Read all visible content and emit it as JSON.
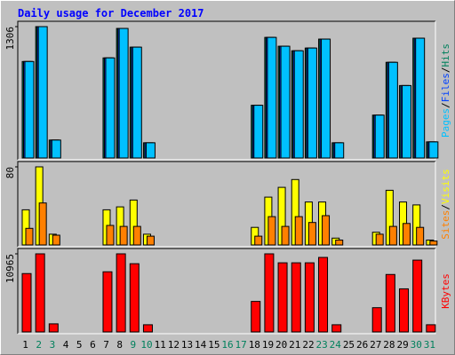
{
  "separator": "/",
  "chart_data": [
    {
      "type": "bar",
      "title": "Daily usage for December 2017",
      "ylim": [
        0,
        1306
      ],
      "yticks": [
        1306
      ],
      "series": [
        {
          "name": "Hits",
          "color": "#00805c",
          "values": [
            959,
            1306,
            178,
            0,
            0,
            0,
            995,
            1288,
            1102,
            151,
            0,
            0,
            0,
            0,
            0,
            0,
            0,
            524,
            1199,
            1111,
            1066,
            1093,
            1182,
            151,
            0,
            0,
            426,
            951,
            720,
            1191,
            160
          ]
        },
        {
          "name": "Files",
          "color": "#0040ff",
          "values": [
            959,
            1306,
            178,
            0,
            0,
            0,
            995,
            1288,
            1102,
            151,
            0,
            0,
            0,
            0,
            0,
            0,
            0,
            524,
            1199,
            1111,
            1066,
            1093,
            1182,
            151,
            0,
            0,
            426,
            951,
            720,
            1191,
            160
          ]
        },
        {
          "name": "Pages",
          "color": "#00c0ff",
          "values": [
            959,
            1306,
            178,
            0,
            0,
            0,
            995,
            1288,
            1102,
            151,
            0,
            0,
            0,
            0,
            0,
            0,
            0,
            524,
            1199,
            1111,
            1066,
            1093,
            1182,
            151,
            0,
            0,
            426,
            951,
            720,
            1191,
            160
          ]
        }
      ]
    },
    {
      "type": "bar",
      "ylim": [
        0,
        80
      ],
      "yticks": [
        80
      ],
      "series": [
        {
          "name": "Visits",
          "color": "#ffff00",
          "values": [
            36,
            80,
            11,
            0,
            0,
            0,
            36,
            39,
            46,
            11,
            0,
            0,
            0,
            0,
            0,
            0,
            0,
            18,
            49,
            59,
            67,
            44,
            44,
            7,
            0,
            0,
            13,
            56,
            44,
            41,
            5
          ]
        },
        {
          "name": "Sites",
          "color": "#ff8000",
          "values": [
            17,
            43,
            10,
            0,
            0,
            0,
            20,
            19,
            19,
            9,
            0,
            0,
            0,
            0,
            0,
            0,
            0,
            9,
            29,
            19,
            29,
            23,
            30,
            5,
            0,
            0,
            11,
            19,
            22,
            18,
            4
          ]
        }
      ]
    },
    {
      "type": "bar",
      "ylim": [
        0,
        10965
      ],
      "yticks": [
        10965
      ],
      "categories": [
        "1",
        "2",
        "3",
        "4",
        "5",
        "6",
        "7",
        "8",
        "9",
        "10",
        "11",
        "12",
        "13",
        "14",
        "15",
        "16",
        "17",
        "18",
        "19",
        "20",
        "21",
        "22",
        "23",
        "24",
        "25",
        "26",
        "27",
        "28",
        "29",
        "30",
        "31"
      ],
      "category_colors": [
        "#000000",
        "#00805c",
        "#00805c",
        "#000000",
        "#000000",
        "#000000",
        "#000000",
        "#000000",
        "#00805c",
        "#00805c",
        "#000000",
        "#000000",
        "#000000",
        "#000000",
        "#000000",
        "#00805c",
        "#00805c",
        "#000000",
        "#000000",
        "#000000",
        "#000000",
        "#000000",
        "#00805c",
        "#00805c",
        "#000000",
        "#000000",
        "#000000",
        "#000000",
        "#000000",
        "#00805c",
        "#00805c"
      ],
      "series": [
        {
          "name": "KBytes",
          "color": "#ff0000",
          "values": [
            8192,
            10965,
            1134,
            0,
            0,
            0,
            8444,
            10965,
            9579,
            1008,
            0,
            0,
            0,
            0,
            0,
            0,
            0,
            4285,
            10965,
            9705,
            9705,
            9705,
            10461,
            1008,
            0,
            0,
            3403,
            8066,
            6050,
            10083,
            1008
          ]
        }
      ]
    }
  ]
}
